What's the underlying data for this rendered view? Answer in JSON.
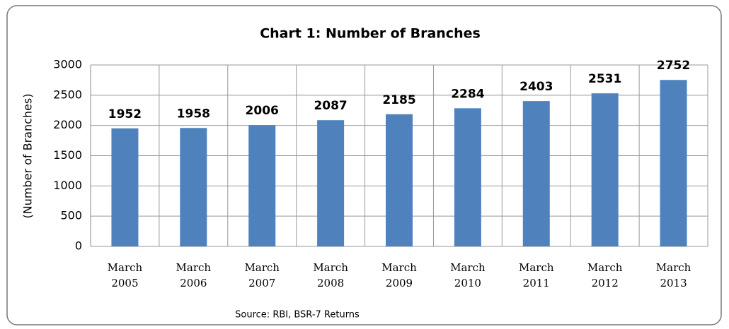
{
  "chart_data": {
    "type": "bar",
    "title": "Chart 1: Number of Branches",
    "y_label": "(Number of Branches)",
    "source": "Source: RBI, BSR-7 Returns",
    "categories": [
      "March 2005",
      "March 2006",
      "March 2007",
      "March 2008",
      "March 2009",
      "March 2010",
      "March 2011",
      "March 2012",
      "March 2013"
    ],
    "values": [
      1952,
      1958,
      2006,
      2087,
      2185,
      2284,
      2403,
      2531,
      2752
    ],
    "color": "#4f81bd",
    "ylim": [
      0,
      3000
    ],
    "yticks": [
      0,
      500,
      1000,
      1500,
      2000,
      2500,
      3000
    ],
    "grid": true
  }
}
